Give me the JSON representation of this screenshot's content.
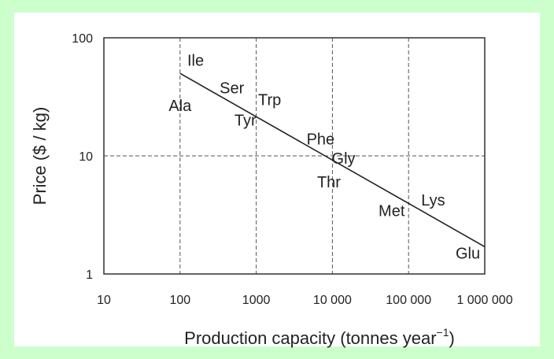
{
  "chart_data": {
    "type": "line",
    "title": "",
    "xlabel": "Production capacity (tonnes year",
    "xlabel_superscript": "−1",
    "xlabel_close": ")",
    "ylabel": "Price  ($ / kg)",
    "xscale": "log",
    "yscale": "log",
    "xlim": [
      10,
      1000000
    ],
    "ylim": [
      1,
      100
    ],
    "grid": true,
    "x_tick_values": [
      10,
      100,
      1000,
      10000,
      100000,
      1000000
    ],
    "x_tick_labels": [
      "10",
      "100",
      "1000",
      "10 000",
      "100 000",
      "1 000 000"
    ],
    "y_tick_values": [
      1,
      10,
      100
    ],
    "y_tick_labels": [
      "1",
      "10",
      "100"
    ],
    "series": [
      {
        "name": "",
        "x": [
          100,
          1000000
        ],
        "y": [
          50,
          1.7
        ]
      }
    ],
    "annotations": [
      {
        "text": "Ile",
        "x": 160,
        "y": 58
      },
      {
        "text": "Ser",
        "x": 480,
        "y": 34
      },
      {
        "text": "Trp",
        "x": 1500,
        "y": 27
      },
      {
        "text": "Ala",
        "x": 100,
        "y": 24
      },
      {
        "text": "Tyr",
        "x": 720,
        "y": 18
      },
      {
        "text": "Phe",
        "x": 7000,
        "y": 12.5
      },
      {
        "text": "Gly",
        "x": 14000,
        "y": 8.6
      },
      {
        "text": "Thr",
        "x": 9000,
        "y": 5.4
      },
      {
        "text": "Met",
        "x": 60000,
        "y": 3.1
      },
      {
        "text": "Lys",
        "x": 210000,
        "y": 3.8
      },
      {
        "text": "Glu",
        "x": 600000,
        "y": 1.35
      }
    ]
  }
}
